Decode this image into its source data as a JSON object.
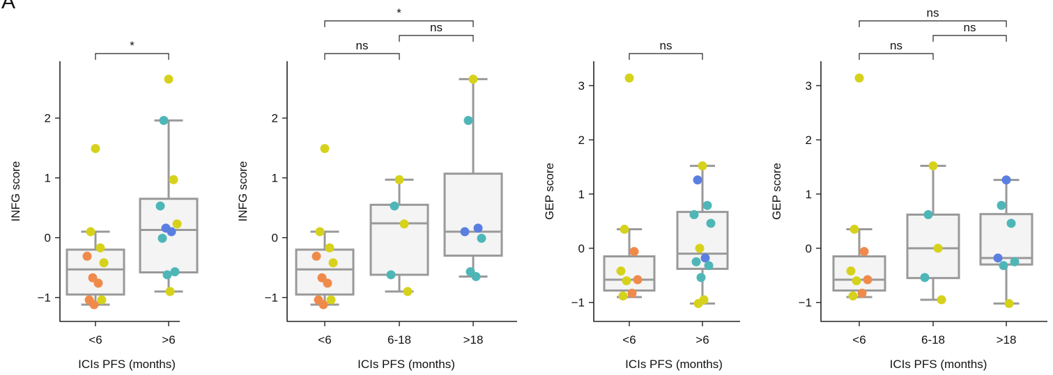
{
  "panel_label": "A",
  "colors": {
    "box_edge": "#999999",
    "box_fill": "#f4f4f4",
    "axis": "#222222",
    "orange": "#f08a4b",
    "yellow": "#d6d21c",
    "teal": "#4fb6b8",
    "blue": "#5b7fe0"
  },
  "chart_data": [
    {
      "type": "box",
      "xlabel": "ICIs PFS (months)",
      "ylabel": "INFG score",
      "ylim": [
        -1.4,
        2.95
      ],
      "yticks": [
        -1,
        0,
        1,
        2
      ],
      "ytick_labels": [
        "−1",
        "0",
        "1",
        "2"
      ],
      "categories": [
        "<6",
        ">6"
      ],
      "boxes": [
        {
          "q1": -0.95,
          "median": -0.53,
          "q3": -0.2,
          "whisker_low": -1.12,
          "whisker_high": 0.1
        },
        {
          "q1": -0.58,
          "median": 0.13,
          "q3": 0.65,
          "whisker_low": -0.9,
          "whisker_high": 1.96
        }
      ],
      "points": [
        [
          {
            "y": 1.49,
            "c": "yellow"
          },
          {
            "y": 0.1,
            "c": "yellow"
          },
          {
            "y": -0.17,
            "c": "yellow"
          },
          {
            "y": -0.31,
            "c": "orange"
          },
          {
            "y": -0.42,
            "c": "yellow"
          },
          {
            "y": -0.67,
            "c": "orange"
          },
          {
            "y": -0.76,
            "c": "orange"
          },
          {
            "y": -1.04,
            "c": "orange"
          },
          {
            "y": -1.04,
            "c": "yellow"
          },
          {
            "y": -1.12,
            "c": "orange"
          }
        ],
        [
          {
            "y": 2.65,
            "c": "yellow"
          },
          {
            "y": 1.96,
            "c": "teal"
          },
          {
            "y": 0.97,
            "c": "yellow"
          },
          {
            "y": 0.53,
            "c": "teal"
          },
          {
            "y": 0.23,
            "c": "yellow"
          },
          {
            "y": 0.16,
            "c": "blue"
          },
          {
            "y": 0.1,
            "c": "blue"
          },
          {
            "y": -0.01,
            "c": "teal"
          },
          {
            "y": -0.57,
            "c": "teal"
          },
          {
            "y": -0.62,
            "c": "teal"
          },
          {
            "y": -0.9,
            "c": "yellow"
          }
        ]
      ],
      "brackets": [
        {
          "from": 0,
          "to": 1,
          "level": 0,
          "label": "*"
        }
      ]
    },
    {
      "type": "box",
      "xlabel": "ICIs PFS (months)",
      "ylabel": "INFG score",
      "ylim": [
        -1.4,
        2.95
      ],
      "yticks": [
        -1,
        0,
        1,
        2
      ],
      "ytick_labels": [
        "−1",
        "0",
        "1",
        "2"
      ],
      "categories": [
        "<6",
        "6-18",
        ">18"
      ],
      "boxes": [
        {
          "q1": -0.95,
          "median": -0.53,
          "q3": -0.2,
          "whisker_low": -1.12,
          "whisker_high": 0.1
        },
        {
          "q1": -0.62,
          "median": 0.24,
          "q3": 0.55,
          "whisker_low": -0.9,
          "whisker_high": 0.97
        },
        {
          "q1": -0.3,
          "median": 0.1,
          "q3": 1.07,
          "whisker_low": -0.65,
          "whisker_high": 2.65
        }
      ],
      "points": [
        [
          {
            "y": 1.49,
            "c": "yellow"
          },
          {
            "y": 0.1,
            "c": "yellow"
          },
          {
            "y": -0.17,
            "c": "yellow"
          },
          {
            "y": -0.31,
            "c": "orange"
          },
          {
            "y": -0.42,
            "c": "yellow"
          },
          {
            "y": -0.67,
            "c": "orange"
          },
          {
            "y": -0.76,
            "c": "orange"
          },
          {
            "y": -1.04,
            "c": "orange"
          },
          {
            "y": -1.04,
            "c": "yellow"
          },
          {
            "y": -1.12,
            "c": "orange"
          }
        ],
        [
          {
            "y": 0.97,
            "c": "yellow"
          },
          {
            "y": 0.53,
            "c": "teal"
          },
          {
            "y": 0.23,
            "c": "yellow"
          },
          {
            "y": -0.62,
            "c": "teal"
          },
          {
            "y": -0.9,
            "c": "yellow"
          }
        ],
        [
          {
            "y": 2.65,
            "c": "yellow"
          },
          {
            "y": 1.96,
            "c": "teal"
          },
          {
            "y": 0.16,
            "c": "blue"
          },
          {
            "y": 0.1,
            "c": "blue"
          },
          {
            "y": -0.01,
            "c": "teal"
          },
          {
            "y": -0.57,
            "c": "teal"
          },
          {
            "y": -0.65,
            "c": "teal"
          }
        ]
      ],
      "brackets": [
        {
          "from": 0,
          "to": 1,
          "level": 0,
          "label": "ns"
        },
        {
          "from": 1,
          "to": 2,
          "level": 1,
          "label": "ns"
        },
        {
          "from": 0,
          "to": 2,
          "level": 2,
          "label": "*"
        }
      ]
    },
    {
      "type": "box",
      "xlabel": "ICIs PFS (months)",
      "ylabel": "GEP score",
      "ylim": [
        -1.35,
        3.45
      ],
      "yticks": [
        -1,
        0,
        1,
        2,
        3
      ],
      "ytick_labels": [
        "−1",
        "0",
        "1",
        "2",
        "3"
      ],
      "categories": [
        "<6",
        ">6"
      ],
      "boxes": [
        {
          "q1": -0.78,
          "median": -0.58,
          "q3": -0.15,
          "whisker_low": -0.9,
          "whisker_high": 0.35
        },
        {
          "q1": -0.38,
          "median": -0.1,
          "q3": 0.67,
          "whisker_low": -1.02,
          "whisker_high": 1.52
        }
      ],
      "points": [
        [
          {
            "y": 3.14,
            "c": "yellow"
          },
          {
            "y": 0.35,
            "c": "yellow"
          },
          {
            "y": -0.06,
            "c": "orange"
          },
          {
            "y": -0.42,
            "c": "yellow"
          },
          {
            "y": -0.58,
            "c": "orange"
          },
          {
            "y": -0.6,
            "c": "yellow"
          },
          {
            "y": -0.83,
            "c": "orange"
          },
          {
            "y": -0.88,
            "c": "yellow"
          }
        ],
        [
          {
            "y": 1.52,
            "c": "yellow"
          },
          {
            "y": 1.26,
            "c": "blue"
          },
          {
            "y": 0.79,
            "c": "teal"
          },
          {
            "y": 0.62,
            "c": "teal"
          },
          {
            "y": 0.46,
            "c": "teal"
          },
          {
            "y": 0.0,
            "c": "yellow"
          },
          {
            "y": -0.18,
            "c": "blue"
          },
          {
            "y": -0.25,
            "c": "teal"
          },
          {
            "y": -0.32,
            "c": "teal"
          },
          {
            "y": -0.54,
            "c": "teal"
          },
          {
            "y": -0.95,
            "c": "yellow"
          },
          {
            "y": -1.02,
            "c": "yellow"
          }
        ]
      ],
      "brackets": [
        {
          "from": 0,
          "to": 1,
          "level": 0,
          "label": "ns"
        }
      ]
    },
    {
      "type": "box",
      "xlabel": "ICIs PFS (months)",
      "ylabel": "GEP score",
      "ylim": [
        -1.35,
        3.45
      ],
      "yticks": [
        -1,
        0,
        1,
        2,
        3
      ],
      "ytick_labels": [
        "−1",
        "0",
        "1",
        "2",
        "3"
      ],
      "categories": [
        "<6",
        "6-18",
        ">18"
      ],
      "boxes": [
        {
          "q1": -0.78,
          "median": -0.58,
          "q3": -0.15,
          "whisker_low": -0.9,
          "whisker_high": 0.35
        },
        {
          "q1": -0.55,
          "median": 0.0,
          "q3": 0.62,
          "whisker_low": -0.95,
          "whisker_high": 1.52
        },
        {
          "q1": -0.3,
          "median": -0.18,
          "q3": 0.63,
          "whisker_low": -1.02,
          "whisker_high": 1.26
        }
      ],
      "points": [
        [
          {
            "y": 3.14,
            "c": "yellow"
          },
          {
            "y": 0.35,
            "c": "yellow"
          },
          {
            "y": -0.06,
            "c": "orange"
          },
          {
            "y": -0.42,
            "c": "yellow"
          },
          {
            "y": -0.58,
            "c": "orange"
          },
          {
            "y": -0.6,
            "c": "yellow"
          },
          {
            "y": -0.83,
            "c": "orange"
          },
          {
            "y": -0.88,
            "c": "yellow"
          }
        ],
        [
          {
            "y": 1.52,
            "c": "yellow"
          },
          {
            "y": 0.62,
            "c": "teal"
          },
          {
            "y": 0.0,
            "c": "yellow"
          },
          {
            "y": -0.54,
            "c": "teal"
          },
          {
            "y": -0.95,
            "c": "yellow"
          }
        ],
        [
          {
            "y": 1.26,
            "c": "blue"
          },
          {
            "y": 0.79,
            "c": "teal"
          },
          {
            "y": 0.46,
            "c": "teal"
          },
          {
            "y": -0.18,
            "c": "blue"
          },
          {
            "y": -0.25,
            "c": "teal"
          },
          {
            "y": -0.32,
            "c": "teal"
          },
          {
            "y": -1.02,
            "c": "yellow"
          }
        ]
      ],
      "brackets": [
        {
          "from": 0,
          "to": 1,
          "level": 0,
          "label": "ns"
        },
        {
          "from": 1,
          "to": 2,
          "level": 1,
          "label": "ns"
        },
        {
          "from": 0,
          "to": 2,
          "level": 2,
          "label": "ns"
        }
      ]
    }
  ]
}
